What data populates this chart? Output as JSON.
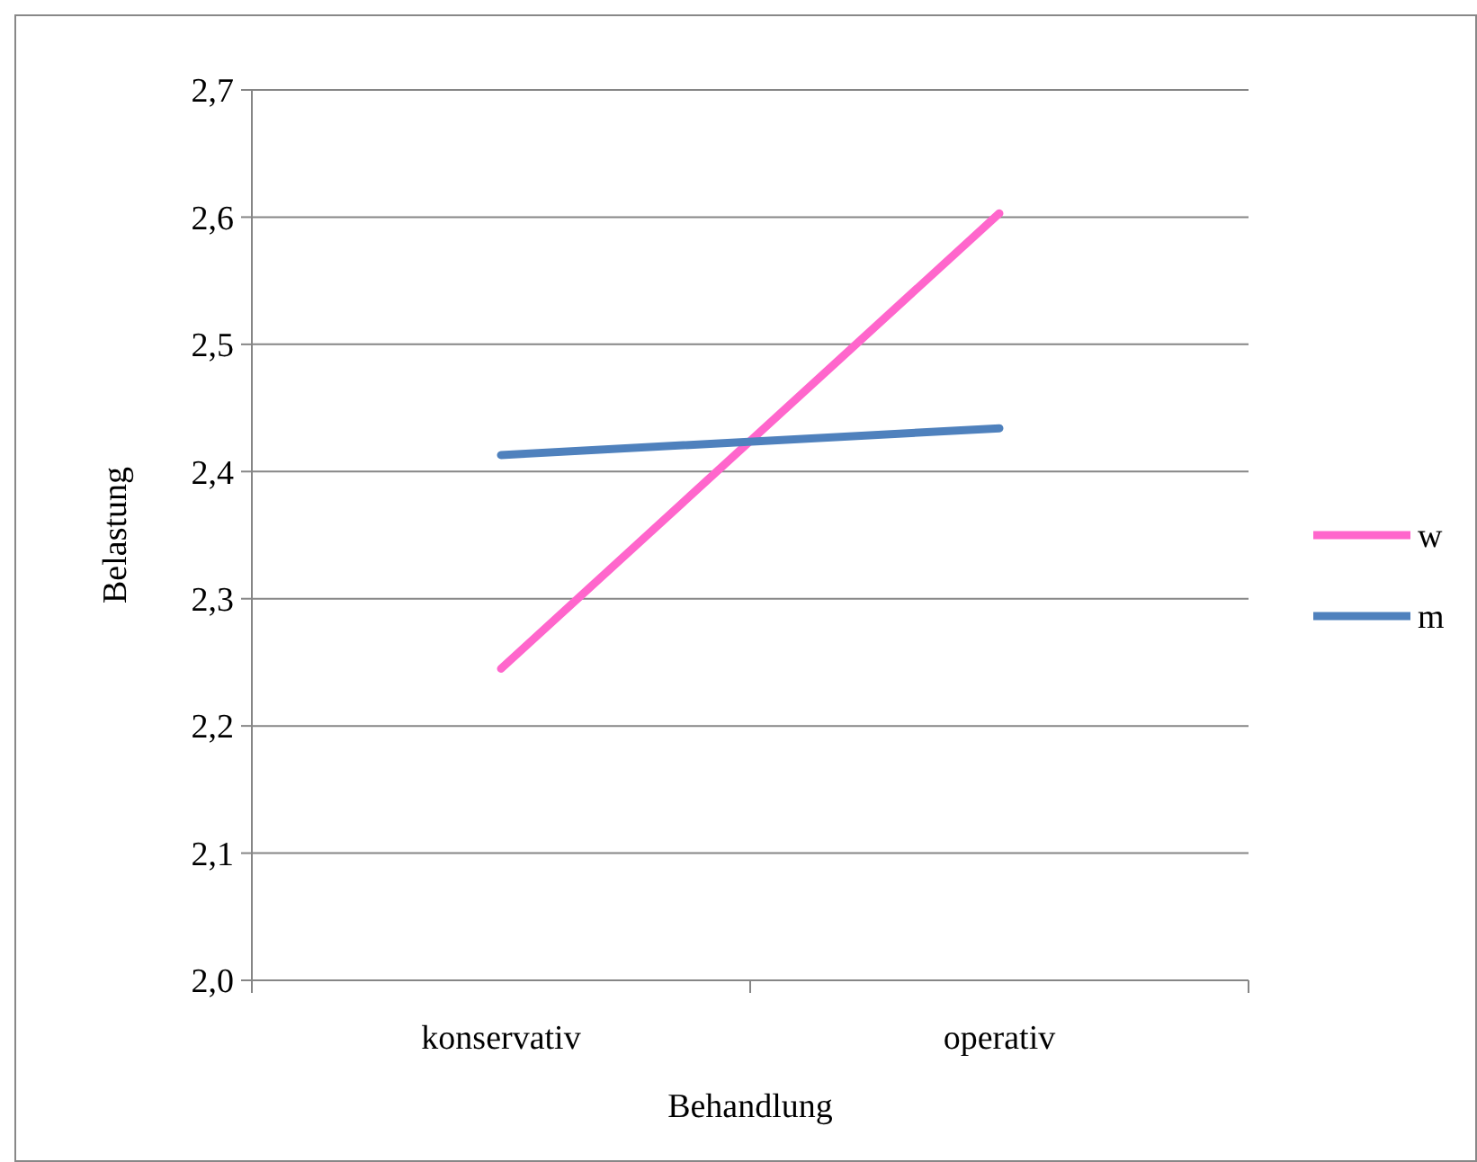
{
  "chart_data": {
    "type": "line",
    "xlabel": "Behandlung",
    "ylabel": "Belastung",
    "categories": [
      "konservativ",
      "operativ"
    ],
    "series": [
      {
        "name": "w",
        "color": "#ff66cc",
        "values": [
          2.245,
          2.603
        ]
      },
      {
        "name": "m",
        "color": "#4f81bd",
        "values": [
          2.413,
          2.434
        ]
      }
    ],
    "ylim": [
      2.0,
      2.7
    ],
    "yticks": [
      {
        "value": 2.0,
        "label": "2,0"
      },
      {
        "value": 2.1,
        "label": "2,1"
      },
      {
        "value": 2.2,
        "label": "2,2"
      },
      {
        "value": 2.3,
        "label": "2,3"
      },
      {
        "value": 2.4,
        "label": "2,4"
      },
      {
        "value": 2.5,
        "label": "2,5"
      },
      {
        "value": 2.6,
        "label": "2,6"
      },
      {
        "value": 2.7,
        "label": "2,7"
      }
    ],
    "grid": "y",
    "legend": "right",
    "marker": "none",
    "line_style": "solid"
  }
}
